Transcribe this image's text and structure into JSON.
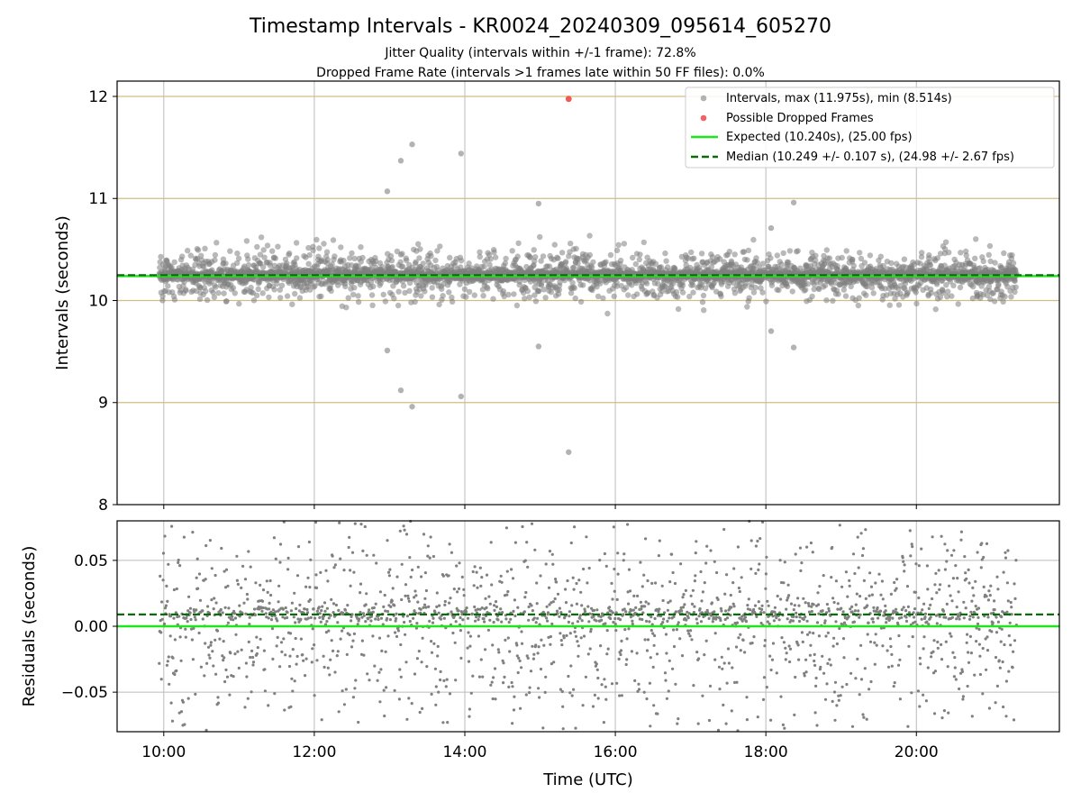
{
  "figure": {
    "title": "Timestamp Intervals - KR0024_20240309_095614_605270",
    "subtitle_1": "Jitter Quality (intervals within +/-1 frame): 72.8%",
    "subtitle_2": "Dropped Frame Rate (intervals >1 frames late within 50 FF files): 0.0%"
  },
  "colors": {
    "intervals": "#808080",
    "dropped": "#f03c3c",
    "expected": "#1ee61e",
    "median": "#0b6b0b",
    "grid": "#bbbbbb",
    "hgrid_top": "#d2be82"
  },
  "chart_data": [
    {
      "type": "scatter",
      "panel": "intervals",
      "ylabel": "Intervals (seconds)",
      "xlabel": "",
      "xlim_hours": [
        9.38,
        21.9
      ],
      "ylim": [
        8,
        12.15
      ],
      "yticks": [
        8,
        9,
        10,
        11,
        12
      ],
      "ytick_labels": [
        "8",
        "9",
        "10",
        "11",
        "12"
      ],
      "xticks_hours": [
        10,
        12,
        14,
        16,
        18,
        20
      ],
      "grid": true,
      "legend_position": "top-right",
      "legend": [
        "Intervals, max (11.975s), min (8.514s)",
        "Possible Dropped Frames",
        "Expected (10.240s), (25.00 fps)",
        "Median (10.249 +/- 0.107 s), (24.98 +/- 2.67 fps)"
      ],
      "expected": 10.24,
      "median": 10.249,
      "std": 0.107,
      "max": 11.975,
      "min": 8.514,
      "x_start_hours": 9.94,
      "x_end_hours": 21.33,
      "n_points": 4000,
      "outliers": [
        {
          "x": 12.97,
          "y": 11.07
        },
        {
          "x": 13.15,
          "y": 11.37
        },
        {
          "x": 13.3,
          "y": 11.53
        },
        {
          "x": 13.95,
          "y": 11.44
        },
        {
          "x": 14.98,
          "y": 10.95
        },
        {
          "x": 18.07,
          "y": 10.71
        },
        {
          "x": 18.37,
          "y": 10.96
        },
        {
          "x": 12.97,
          "y": 9.51
        },
        {
          "x": 13.15,
          "y": 9.12
        },
        {
          "x": 13.3,
          "y": 8.96
        },
        {
          "x": 13.95,
          "y": 9.06
        },
        {
          "x": 14.98,
          "y": 9.55
        },
        {
          "x": 18.07,
          "y": 9.7
        },
        {
          "x": 18.37,
          "y": 9.54
        },
        {
          "x": 15.38,
          "y": 8.514
        }
      ],
      "dropped_frames": [
        {
          "x": 15.38,
          "y": 11.975
        }
      ]
    },
    {
      "type": "scatter",
      "panel": "residuals",
      "ylabel": "Residuals (seconds)",
      "xlabel": "Time (UTC)",
      "xlim_hours": [
        9.38,
        21.9
      ],
      "ylim": [
        -0.08,
        0.08
      ],
      "yticks": [
        -0.05,
        0.0,
        0.05
      ],
      "ytick_labels": [
        "−0.05",
        "0.00",
        "0.05"
      ],
      "xticks_hours": [
        10,
        12,
        14,
        16,
        18,
        20
      ],
      "xtick_labels": [
        "10:00",
        "12:00",
        "14:00",
        "16:00",
        "18:00",
        "20:00"
      ],
      "grid": true,
      "expected_line": 0.0,
      "median_line": 0.009,
      "spread_std": 0.04,
      "n_points": 2000
    }
  ]
}
